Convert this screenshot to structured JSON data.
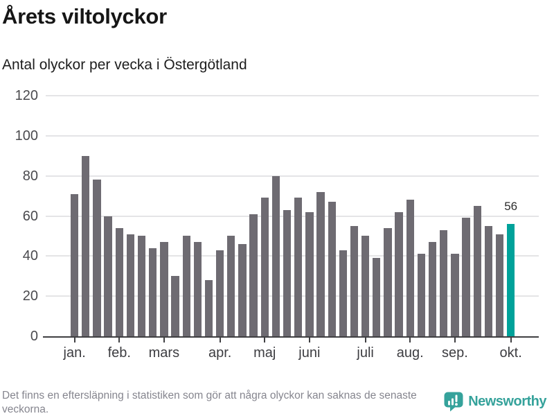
{
  "header": {
    "title": "Årets viltolyckor",
    "subtitle": "Antal olyckor per vecka i Östergötland"
  },
  "footer": {
    "note": "Det finns en eftersläpning i statistiken som gör att några olyckor kan saknas de senaste veckorna.",
    "brand_name": "Newsworthy"
  },
  "colors": {
    "bar": "#6e6b72",
    "highlight": "#00a29a",
    "grid": "#e4e4e6",
    "axis": "#3f3f42",
    "y_label": "#4a4a4e",
    "x_label": "#3d3d41",
    "logo": "#35a29b",
    "footnote": "#85858e"
  },
  "chart_data": {
    "type": "bar",
    "title": "Årets viltolyckor",
    "subtitle": "Antal olyckor per vecka i Östergötland",
    "xlabel": "",
    "ylabel": "Antal olyckor per vecka",
    "x_unit": "vecka (week number)",
    "x": [
      1,
      2,
      3,
      4,
      5,
      6,
      7,
      8,
      9,
      10,
      11,
      12,
      13,
      14,
      15,
      16,
      17,
      18,
      19,
      20,
      21,
      22,
      23,
      24,
      25,
      26,
      27,
      28,
      29,
      30,
      31,
      32,
      33,
      34,
      35,
      36,
      37,
      38,
      39,
      40
    ],
    "values": [
      71,
      90,
      78,
      60,
      54,
      51,
      50,
      44,
      47,
      30,
      50,
      47,
      28,
      43,
      50,
      46,
      61,
      69,
      80,
      63,
      69,
      62,
      72,
      67,
      43,
      55,
      50,
      39,
      54,
      62,
      68,
      41,
      47,
      53,
      41,
      59,
      65,
      55,
      51,
      56
    ],
    "highlight_index": 39,
    "highlight_value_label": "56",
    "ylim": [
      0,
      120
    ],
    "y_ticks": [
      0,
      20,
      40,
      60,
      80,
      100,
      120
    ],
    "x_tick_labels": [
      "jan.",
      "feb.",
      "mars",
      "apr.",
      "maj",
      "juni",
      "juli",
      "aug.",
      "sep.",
      "okt."
    ],
    "x_tick_week_indexes": [
      0,
      4,
      8,
      13,
      17,
      21,
      26,
      30,
      34,
      39
    ],
    "grid": "horizontal",
    "legend": "none"
  }
}
